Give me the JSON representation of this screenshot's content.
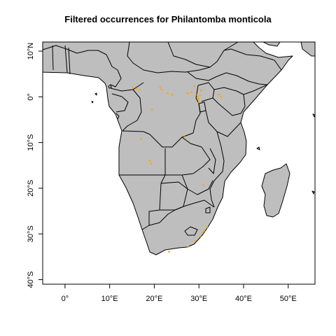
{
  "title": "Filtered occurrences for Philantomba monticola",
  "colors": {
    "land": "#bebebe",
    "border": "#000000",
    "ocean": "#ffffff",
    "occurrence": "#ffa500"
  },
  "chart_data": {
    "type": "scatter",
    "title": "Filtered occurrences for Philantomba monticola",
    "xlim": [
      -5,
      56
    ],
    "ylim": [
      -41,
      12
    ],
    "x_ticks": [
      {
        "value": 0,
        "label": "0°"
      },
      {
        "value": 10,
        "label": "10°E"
      },
      {
        "value": 20,
        "label": "20°E"
      },
      {
        "value": 30,
        "label": "30°E"
      },
      {
        "value": 40,
        "label": "40°E"
      },
      {
        "value": 50,
        "label": "50°E"
      }
    ],
    "y_ticks": [
      {
        "value": 10,
        "label": "10°N"
      },
      {
        "value": 0,
        "label": "0°"
      },
      {
        "value": -10,
        "label": "10°S"
      },
      {
        "value": -20,
        "label": "20°S"
      },
      {
        "value": -30,
        "label": "30°S"
      },
      {
        "value": -40,
        "label": "40°S"
      }
    ],
    "series": [
      {
        "points": [
          {
            "lon": 15.2,
            "lat": 2.0
          },
          {
            "lon": 16.0,
            "lat": 1.8
          },
          {
            "lon": 16.7,
            "lat": 1.5
          },
          {
            "lon": 21.3,
            "lat": 2.0
          },
          {
            "lon": 21.6,
            "lat": 1.6
          },
          {
            "lon": 23.0,
            "lat": 0.8
          },
          {
            "lon": 24.0,
            "lat": 0.5
          },
          {
            "lon": 27.5,
            "lat": 0.8
          },
          {
            "lon": 28.3,
            "lat": 1.0
          },
          {
            "lon": 29.0,
            "lat": 2.3
          },
          {
            "lon": 29.3,
            "lat": 0.5
          },
          {
            "lon": 29.7,
            "lat": 0.0
          },
          {
            "lon": 29.9,
            "lat": -0.5
          },
          {
            "lon": 30.2,
            "lat": 0.3
          },
          {
            "lon": 30.0,
            "lat": -1.2
          },
          {
            "lon": 30.5,
            "lat": 1.4
          },
          {
            "lon": 34.5,
            "lat": 0.5
          },
          {
            "lon": 35.0,
            "lat": 0.0
          },
          {
            "lon": 19.5,
            "lat": -2.8
          },
          {
            "lon": 26.8,
            "lat": -8.8
          },
          {
            "lon": 17.0,
            "lat": -9.2
          },
          {
            "lon": 19.0,
            "lat": -14.0
          },
          {
            "lon": 19.3,
            "lat": -14.6
          },
          {
            "lon": 31.0,
            "lat": -19.3
          },
          {
            "lon": 31.8,
            "lat": -28.5
          },
          {
            "lon": 31.2,
            "lat": -29.3
          },
          {
            "lon": 30.8,
            "lat": -29.8
          },
          {
            "lon": 30.3,
            "lat": -30.5
          },
          {
            "lon": 29.2,
            "lat": -31.5
          },
          {
            "lon": 27.6,
            "lat": -32.8
          },
          {
            "lon": 23.3,
            "lat": -33.9
          }
        ]
      }
    ]
  }
}
